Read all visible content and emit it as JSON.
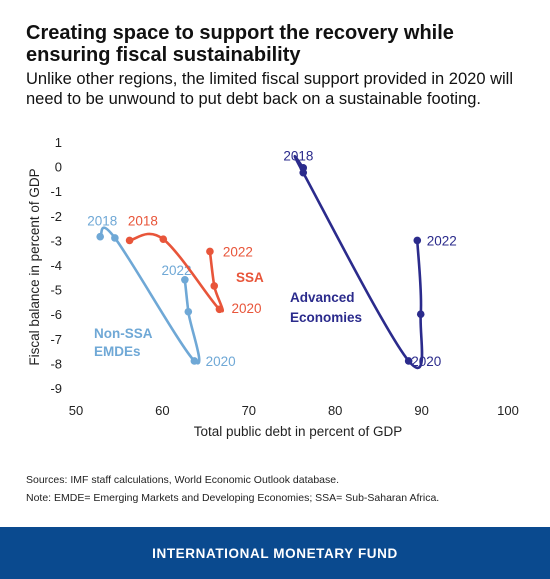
{
  "title": "Creating space to support the recovery while ensuring fiscal sustainability",
  "subtitle": "Unlike other regions, the limited fiscal support provided in 2020 will need to be unwound to put debt back on a sustainable footing.",
  "sources": "Sources: IMF staff calculations, World Economic Outlook database.",
  "note": "Note: EMDE= Emerging Markets and Developing Economies; SSA= Sub-Saharan Africa.",
  "footer": "INTERNATIONAL MONETARY FUND",
  "chart_data": {
    "type": "scatter",
    "xlabel": "Total public debt in percent of GDP",
    "ylabel": "Fiscal balance in percent of GDP",
    "xlim": [
      50,
      100
    ],
    "ylim": [
      -9,
      1
    ],
    "xticks": [
      50,
      60,
      70,
      80,
      90,
      100
    ],
    "yticks": [
      1,
      0,
      -1,
      -2,
      -3,
      -4,
      -5,
      -6,
      -7,
      -8,
      -9
    ],
    "grid": false,
    "series": [
      {
        "name": "Non-SSA EMDEs",
        "color": "#6fa8d6",
        "points": [
          {
            "x": 52.8,
            "y": -2.85
          },
          {
            "x": 54.5,
            "y": -2.9
          },
          {
            "x": 63.7,
            "y": -7.9
          },
          {
            "x": 63.0,
            "y": -5.9
          },
          {
            "x": 62.6,
            "y": -4.6
          }
        ],
        "labels": [
          {
            "text": "2018",
            "x": 51.3,
            "y": -2.2
          },
          {
            "text": "2020",
            "x": 65.0,
            "y": -7.9
          },
          {
            "text": "2022",
            "x": 59.9,
            "y": -4.2
          }
        ],
        "name_lines": [
          "Non-SSA",
          "EMDEs"
        ]
      },
      {
        "name": "SSA",
        "color": "#e8553a",
        "points": [
          {
            "x": 56.2,
            "y": -3.0
          },
          {
            "x": 60.1,
            "y": -2.95
          },
          {
            "x": 66.6,
            "y": -5.8
          },
          {
            "x": 66.0,
            "y": -4.85
          },
          {
            "x": 65.5,
            "y": -3.45
          }
        ],
        "labels": [
          {
            "text": "2018",
            "x": 56.0,
            "y": -2.2
          },
          {
            "text": "2020",
            "x": 68.0,
            "y": -5.75
          },
          {
            "text": "2022",
            "x": 67.0,
            "y": -3.45
          }
        ],
        "name_lines": [
          "SSA"
        ]
      },
      {
        "name": "Advanced Economies",
        "color": "#2b2b8c",
        "points": [
          {
            "x": 76.3,
            "y": -0.05
          },
          {
            "x": 76.3,
            "y": -0.25
          },
          {
            "x": 88.5,
            "y": -7.9
          },
          {
            "x": 89.9,
            "y": -6.0
          },
          {
            "x": 89.5,
            "y": -3.0
          }
        ],
        "labels": [
          {
            "text": "2018",
            "x": 74.0,
            "y": 0.45
          },
          {
            "text": "2020",
            "x": 88.8,
            "y": -7.9
          },
          {
            "text": "2022",
            "x": 90.6,
            "y": -3.0
          }
        ],
        "name_lines": [
          "Advanced",
          "Economies"
        ]
      }
    ]
  }
}
